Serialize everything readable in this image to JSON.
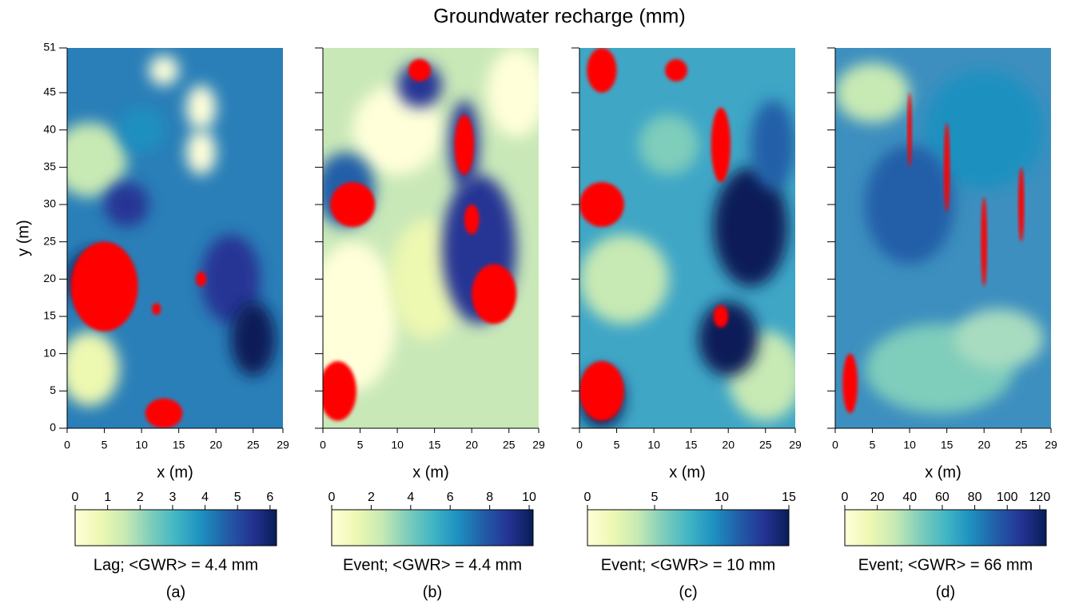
{
  "title": "Groundwater recharge (mm)",
  "chart_data": [
    {
      "type": "heatmap",
      "xlabel": "x (m)",
      "ylabel": "y (m)",
      "xlim": [
        0,
        29
      ],
      "xticks": [
        0,
        5,
        10,
        15,
        20,
        25,
        29
      ],
      "ylim": [
        0,
        51
      ],
      "yticks": [
        0,
        5,
        10,
        15,
        20,
        25,
        30,
        35,
        40,
        45,
        51
      ],
      "clim": [
        0,
        6.2
      ],
      "cticks": [
        0,
        1,
        2,
        3,
        4,
        5,
        6
      ],
      "colorbar_label": "Lag; <GWR> = 4.4 mm",
      "caption": "(a)"
    },
    {
      "type": "heatmap",
      "xlabel": "x (m)",
      "xlim": [
        0,
        29
      ],
      "xticks": [
        0,
        5,
        10,
        15,
        20,
        25,
        29
      ],
      "ylim": [
        0,
        51
      ],
      "yticks": [
        0,
        5,
        10,
        15,
        20,
        25,
        30,
        35,
        40,
        45,
        51
      ],
      "clim": [
        0,
        10.2
      ],
      "cticks": [
        0,
        2,
        4,
        6,
        8,
        10
      ],
      "colorbar_label": "Event; <GWR> = 4.4 mm",
      "caption": "(b)"
    },
    {
      "type": "heatmap",
      "xlabel": "x (m)",
      "xlim": [
        0,
        29
      ],
      "xticks": [
        0,
        5,
        10,
        15,
        20,
        25,
        29
      ],
      "ylim": [
        0,
        51
      ],
      "yticks": [
        0,
        5,
        10,
        15,
        20,
        25,
        30,
        35,
        40,
        45,
        51
      ],
      "clim": [
        0,
        15
      ],
      "cticks": [
        0,
        5,
        10,
        15
      ],
      "colorbar_label": "Event; <GWR> = 10 mm",
      "caption": "(c)"
    },
    {
      "type": "heatmap",
      "xlabel": "x (m)",
      "xlim": [
        0,
        29
      ],
      "xticks": [
        0,
        5,
        10,
        15,
        20,
        25,
        29
      ],
      "ylim": [
        0,
        51
      ],
      "yticks": [
        0,
        5,
        10,
        15,
        20,
        25,
        30,
        35,
        40,
        45,
        51
      ],
      "clim": [
        0,
        124
      ],
      "cticks": [
        0,
        20,
        40,
        60,
        80,
        100,
        120
      ],
      "colorbar_label": "Event; <GWR> = 66 mm",
      "caption": "(d)"
    }
  ]
}
